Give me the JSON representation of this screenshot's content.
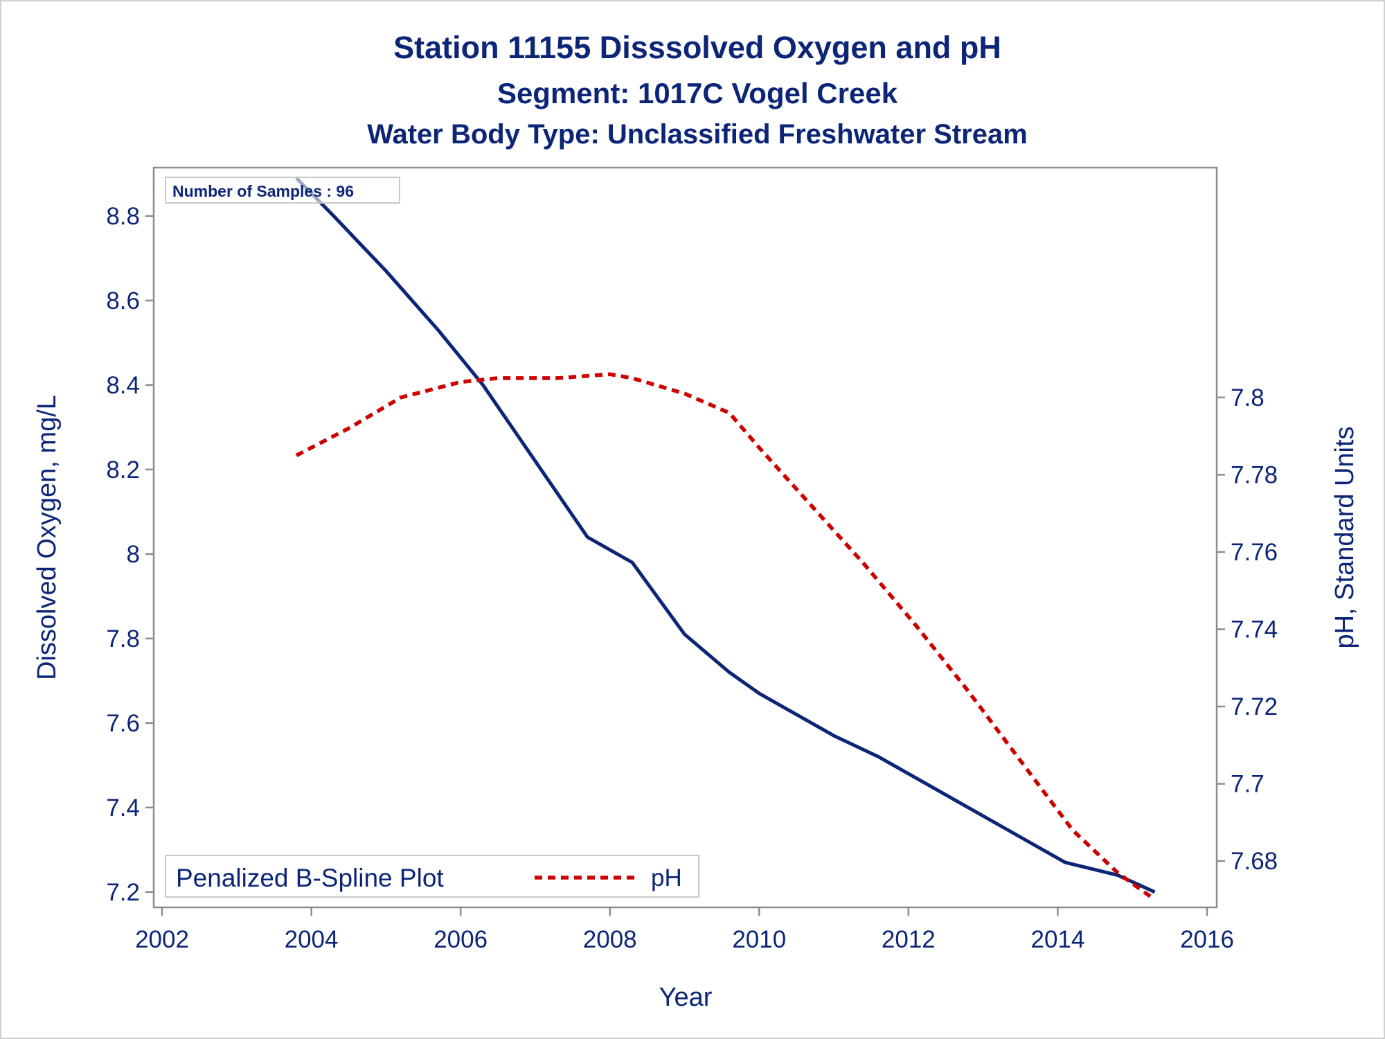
{
  "titles": {
    "line1": "Station 11155   Disssolved Oxygen and pH",
    "line2": "Segment: 1017C  Vogel Creek",
    "line3": "Water Body Type: Unclassified Freshwater Stream"
  },
  "inset_label": "Number of Samples : 96",
  "legend": {
    "title": "Penalized B-Spline Plot",
    "entry": "pH"
  },
  "colors": {
    "text": "#0c2577",
    "do_line": "#0c2577",
    "ph_line": "#cc0000",
    "frame": "#8c8c8c"
  },
  "chart_data": {
    "type": "line",
    "xlabel": "Year",
    "ylabel": "Dissolved Oxygen, mg/L",
    "y2label": "pH, Standard Units",
    "xlim": [
      2002,
      2016
    ],
    "ylim": [
      7.18,
      8.89
    ],
    "y2lim": [
      7.6698,
      7.8568
    ],
    "x_ticks": [
      "2002",
      "2004",
      "2006",
      "2008",
      "2010",
      "2012",
      "2014",
      "2016"
    ],
    "y_ticks": [
      "7.2",
      "7.4",
      "7.6",
      "7.8",
      "8",
      "8.2",
      "8.4",
      "8.6",
      "8.8"
    ],
    "y2_ticks": [
      "7.68",
      "7.7",
      "7.72",
      "7.74",
      "7.76",
      "7.78",
      "7.8"
    ],
    "grid": false,
    "legend_position": "bottom-left",
    "series": [
      {
        "name": "Dissolved Oxygen",
        "axis": "left",
        "style": "solid",
        "x": [
          2003.8,
          2004.3,
          2005.0,
          2005.7,
          2006.3,
          2007.0,
          2007.7,
          2008.3,
          2009.0,
          2009.6,
          2010.0,
          2010.5,
          2011.0,
          2011.6,
          2012.2,
          2012.8,
          2013.5,
          2014.1,
          2014.8,
          2015.3
        ],
        "y": [
          8.89,
          8.8,
          8.67,
          8.53,
          8.4,
          8.22,
          8.04,
          7.98,
          7.81,
          7.72,
          7.67,
          7.62,
          7.57,
          7.52,
          7.46,
          7.4,
          7.33,
          7.27,
          7.24,
          7.2
        ]
      },
      {
        "name": "pH",
        "axis": "right",
        "style": "dashed",
        "x": [
          2003.8,
          2004.5,
          2005.2,
          2006.0,
          2006.5,
          2007.3,
          2008.0,
          2008.3,
          2009.0,
          2009.6,
          2010.0,
          2010.7,
          2011.4,
          2012.1,
          2012.8,
          2013.5,
          2014.2,
          2014.8,
          2015.3
        ],
        "y": [
          7.785,
          7.792,
          7.8,
          7.804,
          7.805,
          7.805,
          7.806,
          7.805,
          7.801,
          7.796,
          7.787,
          7.772,
          7.757,
          7.741,
          7.724,
          7.706,
          7.688,
          7.677,
          7.67
        ]
      }
    ]
  }
}
